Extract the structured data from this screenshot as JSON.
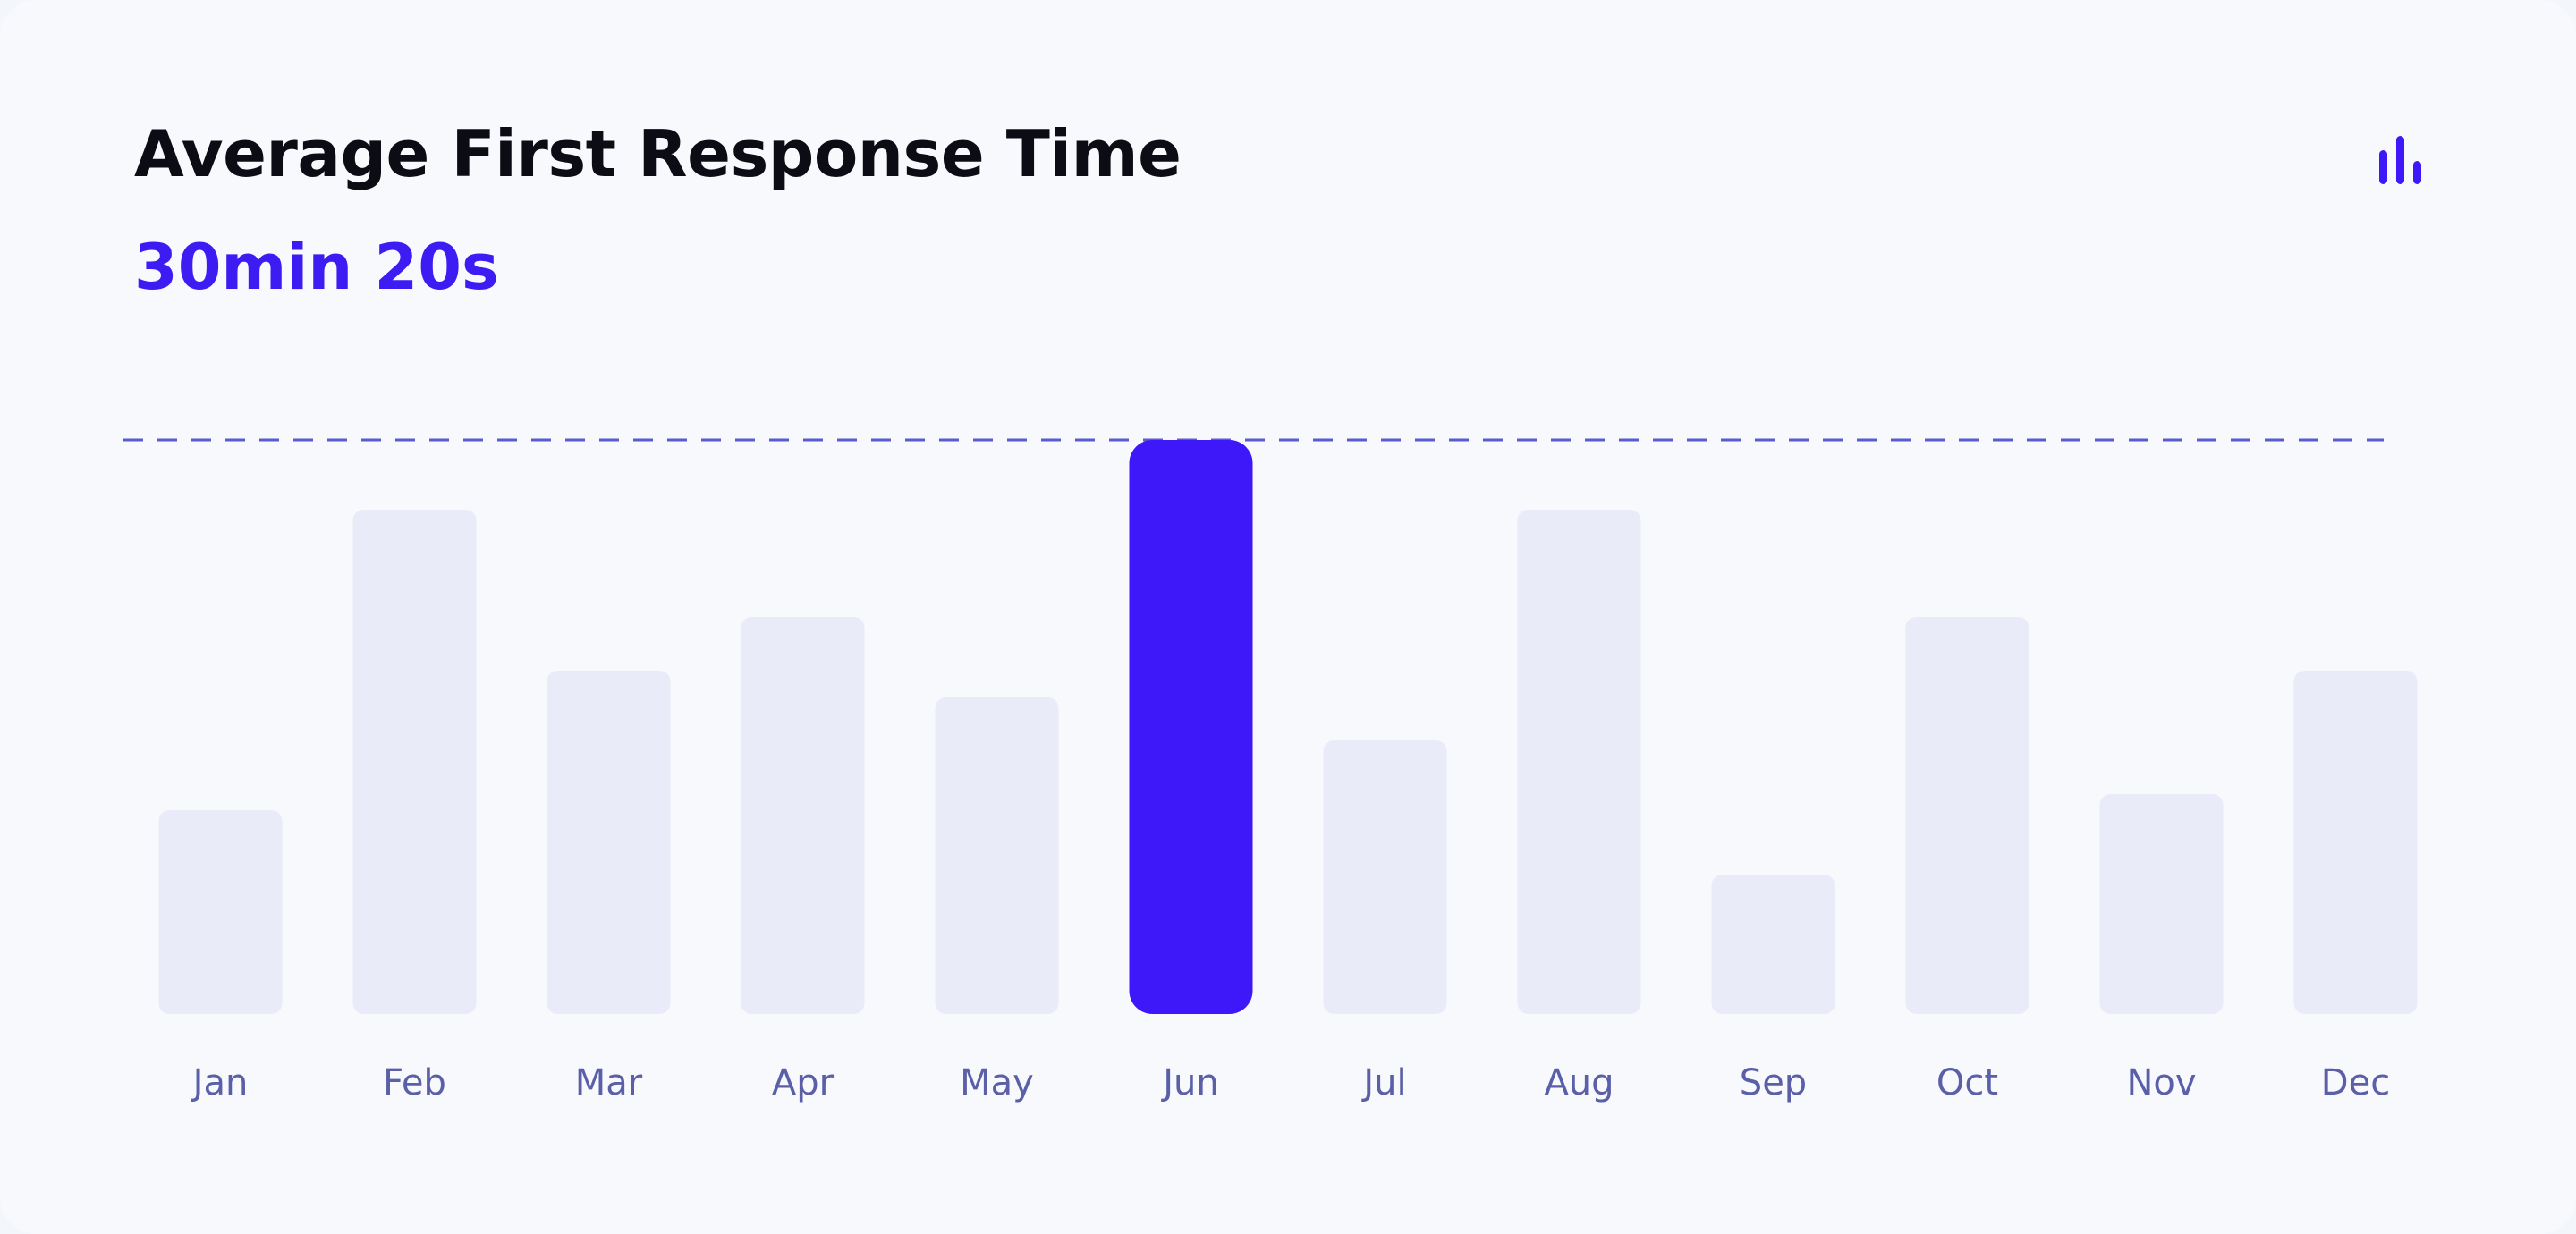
{
  "header": {
    "title": "Average First Response Time",
    "metric": "30min 20s"
  },
  "icons": {
    "chart_toggle": "bar-chart-icon"
  },
  "colors": {
    "accent": "#3e18f9",
    "bar_default": "#e9ecf8",
    "tick_label": "#5a5fa8",
    "reference_line": "#5a5ad0"
  },
  "chart_data": {
    "type": "bar",
    "categories": [
      "Jan",
      "Feb",
      "Mar",
      "Apr",
      "May",
      "Jun",
      "Jul",
      "Aug",
      "Sep",
      "Oct",
      "Nov",
      "Dec"
    ],
    "values": [
      19,
      47,
      32,
      37,
      29.5,
      53.5,
      25.5,
      47,
      13,
      37,
      20.5,
      32
    ],
    "highlighted_index": 5,
    "reference_value": 53.5,
    "reference_style": "dashed",
    "ylim": [
      0,
      53.5
    ],
    "grid": false,
    "title": "",
    "xlabel": "",
    "ylabel": ""
  }
}
